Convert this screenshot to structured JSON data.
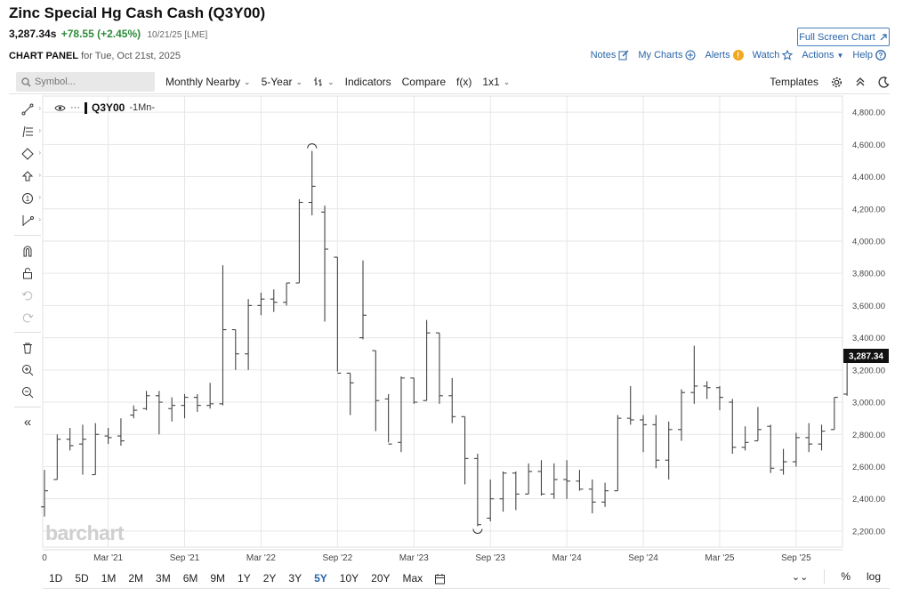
{
  "header": {
    "title": "Zinc Special Hg Cash Cash (Q3Y00)",
    "last": "3,287.34s",
    "change": "+78.55 (+2.45%)",
    "datetime": "10/21/25 [LME]",
    "fullscreen_label": "Full Screen Chart",
    "panel_label": "CHART PANEL",
    "panel_date": "for Tue, Oct 21st, 2025"
  },
  "links": {
    "notes": "Notes",
    "my_charts": "My Charts",
    "alerts": "Alerts",
    "alerts_badge": "!",
    "watch": "Watch",
    "actions": "Actions",
    "help": "Help"
  },
  "toolbar": {
    "search_placeholder": "Symbol...",
    "monthly": "Monthly Nearby",
    "period": "5-Year",
    "indicators": "Indicators",
    "compare": "Compare",
    "fx": "f(x)",
    "layout": "1x1",
    "templates": "Templates"
  },
  "legend": {
    "symbol": "Q3Y00",
    "interval": "-1Mn-"
  },
  "watermark": "barchart",
  "periods": [
    "1D",
    "5D",
    "1M",
    "2M",
    "3M",
    "6M",
    "9M",
    "1Y",
    "2Y",
    "3Y",
    "5Y",
    "10Y",
    "20Y",
    "Max"
  ],
  "active_period": "5Y",
  "bottom_right": {
    "percent": "%",
    "log": "log"
  },
  "colors": {
    "accent": "#2a64a8",
    "up": "#2e8b3b",
    "bar": "#444444",
    "price_tag": "#111111"
  },
  "chart_data": {
    "type": "ohlc",
    "interval": "monthly",
    "ylim": [
      2100,
      4900
    ],
    "yticks": [
      "2,200.00",
      "2,400.00",
      "2,600.00",
      "2,800.00",
      "3,000.00",
      "3,200.00",
      "3,400.00",
      "3,600.00",
      "3,800.00",
      "4,000.00",
      "4,200.00",
      "4,400.00",
      "4,600.00",
      "4,800.00"
    ],
    "ytick_values": [
      2200,
      2400,
      2600,
      2800,
      3000,
      3200,
      3400,
      3600,
      3800,
      4000,
      4200,
      4400,
      4600,
      4800
    ],
    "xticks": [
      {
        "label": "0",
        "index": 0
      },
      {
        "label": "Mar '21",
        "index": 5
      },
      {
        "label": "Sep '21",
        "index": 11
      },
      {
        "label": "Mar '22",
        "index": 17
      },
      {
        "label": "Sep '22",
        "index": 23
      },
      {
        "label": "Mar '23",
        "index": 29
      },
      {
        "label": "Sep '23",
        "index": 35
      },
      {
        "label": "Mar '24",
        "index": 41
      },
      {
        "label": "Sep '24",
        "index": 47
      },
      {
        "label": "Mar '25",
        "index": 53
      },
      {
        "label": "Sep '25",
        "index": 59
      }
    ],
    "last_price_label": "3,287.34",
    "last_price": 3287.34,
    "bars": [
      {
        "o": 2350,
        "h": 2580,
        "l": 2290,
        "c": 2450
      },
      {
        "o": 2520,
        "h": 2800,
        "l": 2520,
        "c": 2770
      },
      {
        "o": 2770,
        "h": 2840,
        "l": 2700,
        "c": 2730
      },
      {
        "o": 2740,
        "h": 2860,
        "l": 2550,
        "c": 2770
      },
      {
        "o": 2550,
        "h": 2870,
        "l": 2550,
        "c": 2800
      },
      {
        "o": 2790,
        "h": 2840,
        "l": 2740,
        "c": 2780
      },
      {
        "o": 2790,
        "h": 2900,
        "l": 2730,
        "c": 2760
      },
      {
        "o": 2920,
        "h": 2980,
        "l": 2900,
        "c": 2950
      },
      {
        "o": 2960,
        "h": 3070,
        "l": 2950,
        "c": 3040
      },
      {
        "o": 3040,
        "h": 3070,
        "l": 2800,
        "c": 3000
      },
      {
        "o": 2960,
        "h": 3030,
        "l": 2880,
        "c": 2980
      },
      {
        "o": 2980,
        "h": 3050,
        "l": 2900,
        "c": 3030
      },
      {
        "o": 3030,
        "h": 3050,
        "l": 2940,
        "c": 2980
      },
      {
        "o": 2980,
        "h": 3120,
        "l": 2960,
        "c": 2990
      },
      {
        "o": 2990,
        "h": 3850,
        "l": 2980,
        "c": 3450
      },
      {
        "o": 3450,
        "h": 3450,
        "l": 3200,
        "c": 3300
      },
      {
        "o": 3300,
        "h": 3640,
        "l": 3200,
        "c": 3600
      },
      {
        "o": 3600,
        "h": 3680,
        "l": 3540,
        "c": 3640
      },
      {
        "o": 3640,
        "h": 3700,
        "l": 3560,
        "c": 3620
      },
      {
        "o": 3620,
        "h": 3740,
        "l": 3600,
        "c": 3740
      },
      {
        "o": 3740,
        "h": 4260,
        "l": 3740,
        "c": 4240
      },
      {
        "o": 4240,
        "h": 4560,
        "l": 4160,
        "c": 4340
      },
      {
        "o": 4180,
        "h": 4220,
        "l": 3500,
        "c": 3950
      },
      {
        "o": 3900,
        "h": 3900,
        "l": 3190,
        "c": 3180
      },
      {
        "o": 3180,
        "h": 3180,
        "l": 2920,
        "c": 3120
      },
      {
        "o": 3400,
        "h": 3880,
        "l": 3390,
        "c": 3540
      },
      {
        "o": 3320,
        "h": 3320,
        "l": 2820,
        "c": 3010
      },
      {
        "o": 3020,
        "h": 3050,
        "l": 2750,
        "c": 2740
      },
      {
        "o": 2750,
        "h": 3160,
        "l": 2690,
        "c": 3150
      },
      {
        "o": 3150,
        "h": 3150,
        "l": 2990,
        "c": 3000
      },
      {
        "o": 3010,
        "h": 3510,
        "l": 3010,
        "c": 3430
      },
      {
        "o": 3430,
        "h": 3430,
        "l": 2990,
        "c": 3040
      },
      {
        "o": 3040,
        "h": 3150,
        "l": 2870,
        "c": 2910
      },
      {
        "o": 2910,
        "h": 2910,
        "l": 2490,
        "c": 2650
      },
      {
        "o": 2650,
        "h": 2680,
        "l": 2230,
        "c": 2240
      },
      {
        "o": 2280,
        "h": 2520,
        "l": 2260,
        "c": 2400
      },
      {
        "o": 2400,
        "h": 2570,
        "l": 2320,
        "c": 2560
      },
      {
        "o": 2560,
        "h": 2570,
        "l": 2330,
        "c": 2430
      },
      {
        "o": 2430,
        "h": 2620,
        "l": 2430,
        "c": 2570
      },
      {
        "o": 2570,
        "h": 2640,
        "l": 2420,
        "c": 2430
      },
      {
        "o": 2430,
        "h": 2620,
        "l": 2400,
        "c": 2520
      },
      {
        "o": 2520,
        "h": 2640,
        "l": 2400,
        "c": 2510
      },
      {
        "o": 2510,
        "h": 2580,
        "l": 2450,
        "c": 2460
      },
      {
        "o": 2460,
        "h": 2520,
        "l": 2310,
        "c": 2380
      },
      {
        "o": 2380,
        "h": 2500,
        "l": 2350,
        "c": 2450
      },
      {
        "o": 2450,
        "h": 2920,
        "l": 2450,
        "c": 2900
      },
      {
        "o": 2900,
        "h": 3100,
        "l": 2860,
        "c": 2890
      },
      {
        "o": 2890,
        "h": 2920,
        "l": 2690,
        "c": 2860
      },
      {
        "o": 2860,
        "h": 2920,
        "l": 2590,
        "c": 2640
      },
      {
        "o": 2640,
        "h": 2880,
        "l": 2520,
        "c": 2830
      },
      {
        "o": 2830,
        "h": 3080,
        "l": 2760,
        "c": 3060
      },
      {
        "o": 3060,
        "h": 3350,
        "l": 2990,
        "c": 3100
      },
      {
        "o": 3100,
        "h": 3130,
        "l": 3020,
        "c": 3090
      },
      {
        "o": 3090,
        "h": 3100,
        "l": 2950,
        "c": 3030
      },
      {
        "o": 3000,
        "h": 3020,
        "l": 2680,
        "c": 2720
      },
      {
        "o": 2720,
        "h": 2850,
        "l": 2700,
        "c": 2750
      },
      {
        "o": 2760,
        "h": 2970,
        "l": 2760,
        "c": 2830
      },
      {
        "o": 2850,
        "h": 2860,
        "l": 2560,
        "c": 2590
      },
      {
        "o": 2580,
        "h": 2710,
        "l": 2550,
        "c": 2630
      },
      {
        "o": 2630,
        "h": 2810,
        "l": 2600,
        "c": 2780
      },
      {
        "o": 2780,
        "h": 2870,
        "l": 2690,
        "c": 2740
      },
      {
        "o": 2740,
        "h": 2860,
        "l": 2700,
        "c": 2820
      },
      {
        "o": 2830,
        "h": 3030,
        "l": 2830,
        "c": 3030
      },
      {
        "o": 3050,
        "h": 3290,
        "l": 3040,
        "c": 3287.34
      }
    ]
  }
}
